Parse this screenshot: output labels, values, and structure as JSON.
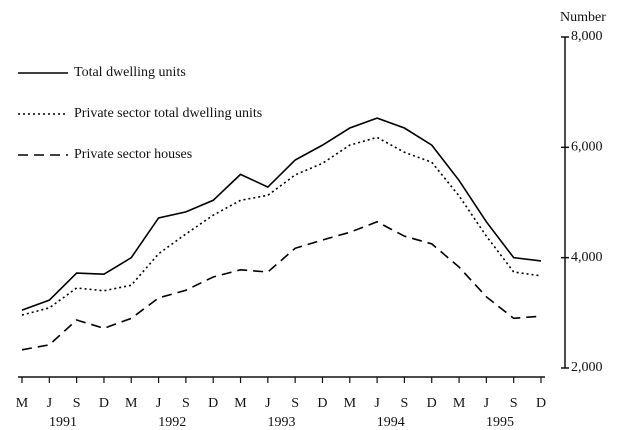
{
  "chart_data": {
    "type": "line",
    "y_axis_label": "Number",
    "categories": [
      "M",
      "J",
      "S",
      "D",
      "M",
      "J",
      "S",
      "D",
      "M",
      "J",
      "S",
      "D",
      "M",
      "J",
      "S",
      "D",
      "M",
      "J",
      "S",
      "D"
    ],
    "year_labels": [
      "1991",
      "1992",
      "1993",
      "1994",
      "1995"
    ],
    "series": [
      {
        "name": "Total dwelling units",
        "color": "#000000",
        "dash": "solid",
        "values": [
          3050,
          3230,
          3720,
          3700,
          4000,
          4720,
          4830,
          5040,
          5510,
          5280,
          5770,
          6040,
          6350,
          6530,
          6350,
          6040,
          5400,
          4650,
          4000,
          3940
        ]
      },
      {
        "name": "Private sector total dwelling units",
        "color": "#000000",
        "dash": "dotted",
        "values": [
          2960,
          3090,
          3450,
          3400,
          3500,
          4070,
          4430,
          4770,
          5040,
          5130,
          5500,
          5710,
          6040,
          6180,
          5910,
          5730,
          5120,
          4390,
          3740,
          3670
        ]
      },
      {
        "name": "Private sector houses",
        "color": "#000000",
        "dash": "dashed",
        "values": [
          2330,
          2420,
          2870,
          2720,
          2900,
          3270,
          3410,
          3650,
          3780,
          3740,
          4170,
          4320,
          4460,
          4650,
          4390,
          4250,
          3830,
          3290,
          2900,
          2940
        ]
      }
    ],
    "ylim": [
      2000,
      8000
    ],
    "yticks": [
      {
        "value": 2000,
        "label": "2,000"
      },
      {
        "value": 4000,
        "label": "4,000"
      },
      {
        "value": 6000,
        "label": "6,000"
      },
      {
        "value": 8000,
        "label": "8,000"
      }
    ],
    "y_axis_side": "right",
    "legend": "top-left",
    "grid": false
  }
}
